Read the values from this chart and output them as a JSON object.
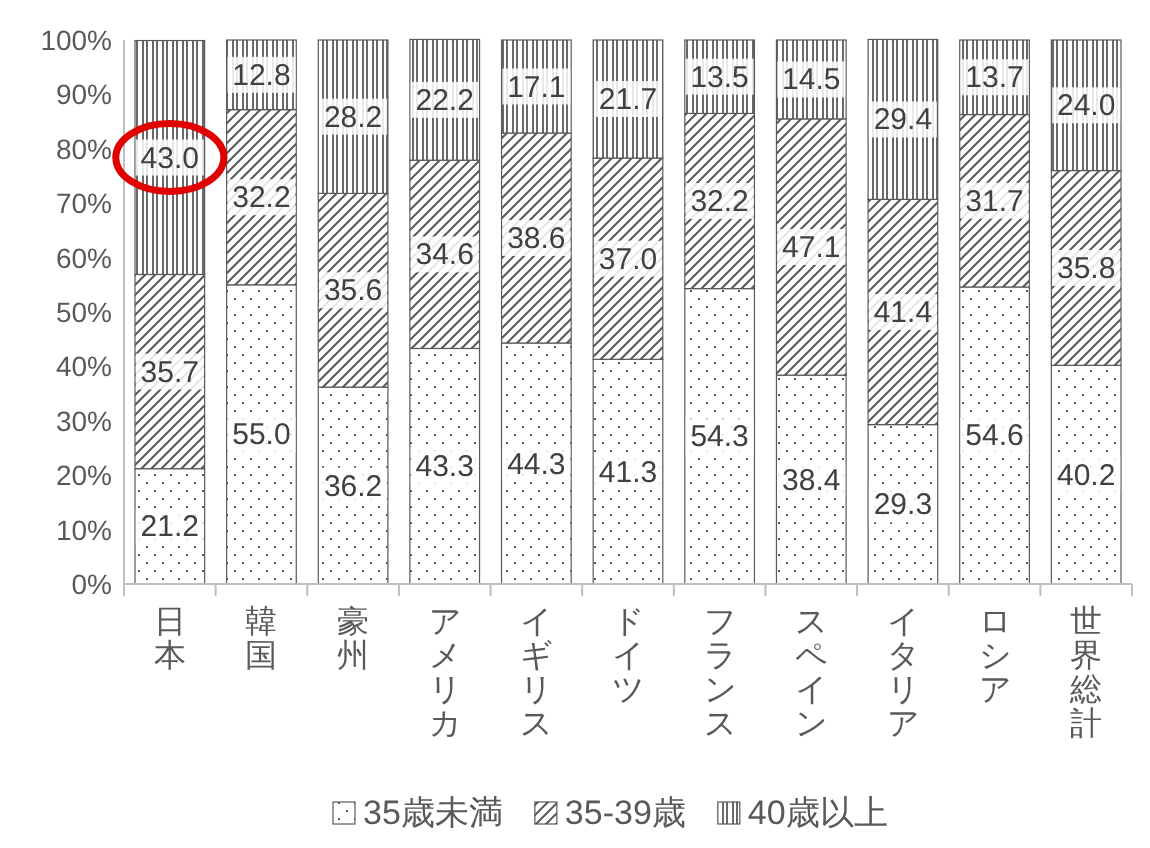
{
  "chart_data": {
    "type": "bar",
    "stacked": true,
    "categories": [
      "日本",
      "韓国",
      "豪州",
      "アメリカ",
      "イギリス",
      "ドイツ",
      "フランス",
      "スペイン",
      "イタリア",
      "ロシア",
      "世界総計"
    ],
    "series": [
      {
        "name": "35歳未満",
        "color": "#595959",
        "values": [
          21.2,
          55.0,
          36.2,
          43.3,
          44.3,
          41.3,
          54.3,
          38.4,
          29.3,
          54.6,
          40.2
        ],
        "value_labels": [
          "21.2",
          "55.0",
          "36.2",
          "43.3",
          "44.3",
          "41.3",
          "54.3",
          "38.4",
          "29.3",
          "54.6",
          "40.2"
        ]
      },
      {
        "name": "35-39歳",
        "color": "#595959",
        "values": [
          35.7,
          32.2,
          35.6,
          34.6,
          38.6,
          37.0,
          32.2,
          47.1,
          41.4,
          31.7,
          35.8
        ],
        "value_labels": [
          "35.7",
          "32.2",
          "35.6",
          "34.6",
          "38.6",
          "37.0",
          "32.2",
          "47.1",
          "41.4",
          "31.7",
          "35.8"
        ]
      },
      {
        "name": "40歳以上",
        "color": "#595959",
        "values": [
          43.0,
          12.8,
          28.2,
          22.2,
          17.1,
          21.7,
          13.5,
          14.5,
          29.4,
          13.7,
          24.0
        ],
        "value_labels": [
          "43.0",
          "12.8",
          "28.2",
          "22.2",
          "17.1",
          "21.7",
          "13.5",
          "14.5",
          "29.4",
          "13.7",
          "24.0"
        ]
      }
    ],
    "ylim": [
      0,
      100
    ],
    "yticks": [
      {
        "value": 0,
        "label": "0%"
      },
      {
        "value": 10,
        "label": "10%"
      },
      {
        "value": 20,
        "label": "20%"
      },
      {
        "value": 30,
        "label": "30%"
      },
      {
        "value": 40,
        "label": "40%"
      },
      {
        "value": 50,
        "label": "50%"
      },
      {
        "value": 60,
        "label": "60%"
      },
      {
        "value": 70,
        "label": "70%"
      },
      {
        "value": 80,
        "label": "80%"
      },
      {
        "value": 90,
        "label": "90%"
      },
      {
        "value": 100,
        "label": "100%"
      }
    ],
    "legend": "bottom",
    "grid": false
  }
}
